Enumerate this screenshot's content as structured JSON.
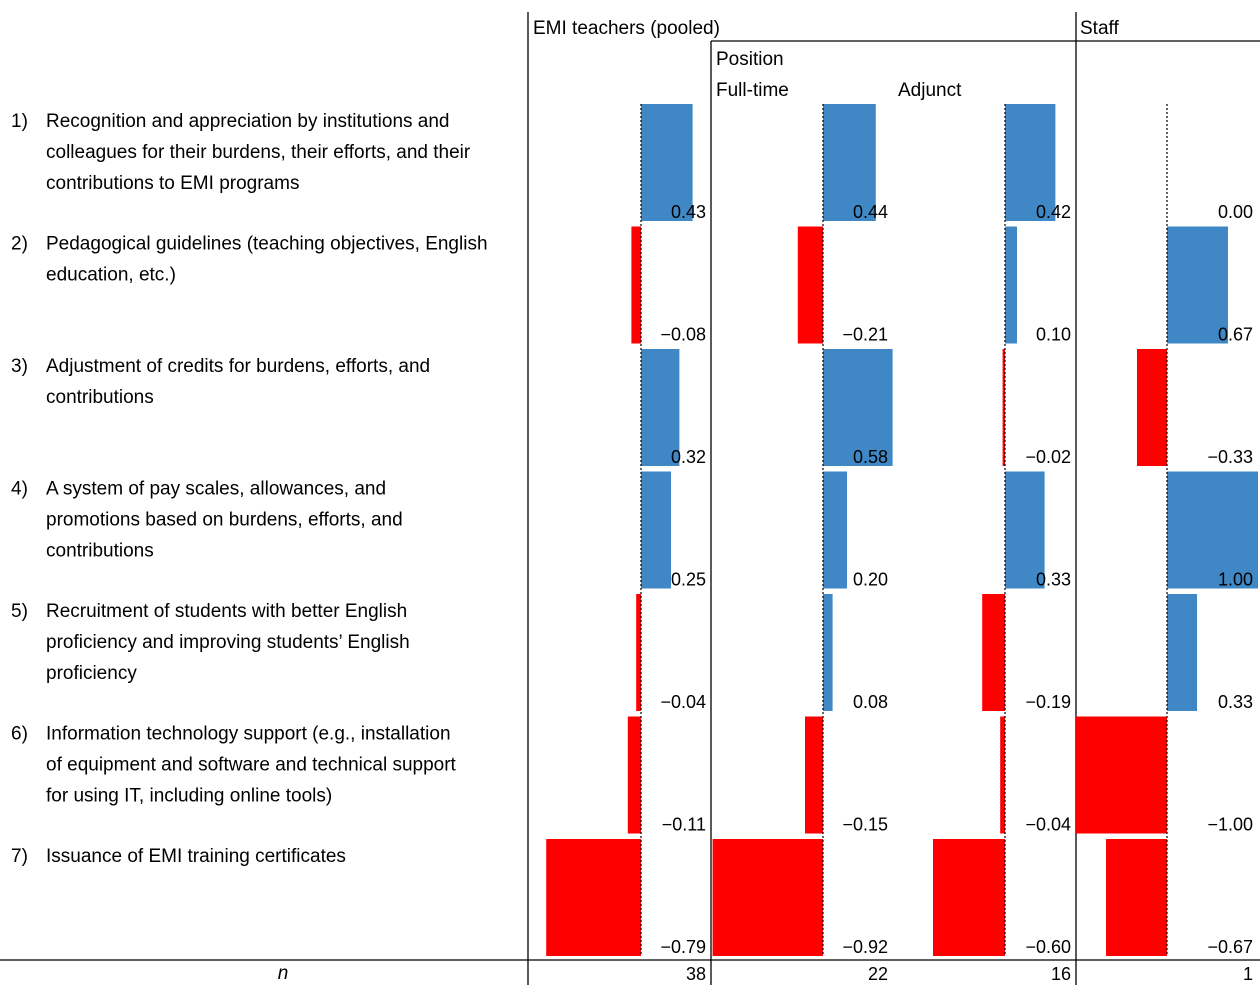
{
  "chart_data": {
    "type": "bar",
    "orientation": "horizontal",
    "headers": {
      "pooled": "EMI teachers (pooled)",
      "staff": "Staff",
      "position": "Position",
      "fulltime": "Full-time",
      "adjunct": "Adjunct"
    },
    "categories": [
      {
        "num": "1)",
        "lines": [
          "Recognition and appreciation by institutions and",
          "colleagues for their burdens, their efforts, and their",
          "contributions to EMI programs"
        ]
      },
      {
        "num": "2)",
        "lines": [
          "Pedagogical guidelines (teaching objectives, English",
          "education, etc.)"
        ]
      },
      {
        "num": "3)",
        "lines": [
          "Adjustment of credits for burdens, efforts, and",
          "contributions"
        ]
      },
      {
        "num": "4)",
        "lines": [
          "A system of pay scales, allowances, and",
          "promotions based on burdens, efforts, and",
          "contributions"
        ]
      },
      {
        "num": "5)",
        "lines": [
          "Recruitment of students with better English",
          "proficiency and improving students’ English",
          "proficiency"
        ]
      },
      {
        "num": "6)",
        "lines": [
          "Information technology support (e.g., installation",
          "of equipment and software and technical support",
          "for using IT, including online tools)"
        ]
      },
      {
        "num": "7)",
        "lines": [
          "Issuance of EMI training certificates"
        ]
      }
    ],
    "series": [
      {
        "key": "pooled",
        "values": [
          0.43,
          -0.08,
          0.32,
          0.25,
          -0.04,
          -0.11,
          -0.79
        ],
        "labels": [
          "0.43",
          "−0.08",
          "0.32",
          "0.25",
          "−0.04",
          "−0.11",
          "−0.79"
        ],
        "n": "38"
      },
      {
        "key": "fulltime",
        "values": [
          0.44,
          -0.21,
          0.58,
          0.2,
          0.08,
          -0.15,
          -0.92
        ],
        "labels": [
          "0.44",
          "−0.21",
          "0.58",
          "0.20",
          "0.08",
          "−0.15",
          "−0.92"
        ],
        "n": "22"
      },
      {
        "key": "adjunct",
        "values": [
          0.42,
          0.1,
          -0.02,
          0.33,
          -0.19,
          -0.04,
          -0.6
        ],
        "labels": [
          "0.42",
          "0.10",
          "−0.02",
          "0.33",
          "−0.19",
          "−0.04",
          "−0.60"
        ],
        "n": "16"
      },
      {
        "key": "staff",
        "values": [
          0.0,
          0.67,
          -0.33,
          1.0,
          0.33,
          -1.0,
          -0.67
        ],
        "labels": [
          "0.00",
          "0.67",
          "−0.33",
          "1.00",
          "0.33",
          "−1.00",
          "−0.67"
        ],
        "n": "1"
      }
    ],
    "n_label": "n",
    "colors": {
      "positive": "#3F88C5",
      "negative": "#FF0000",
      "line": "#000000"
    }
  }
}
